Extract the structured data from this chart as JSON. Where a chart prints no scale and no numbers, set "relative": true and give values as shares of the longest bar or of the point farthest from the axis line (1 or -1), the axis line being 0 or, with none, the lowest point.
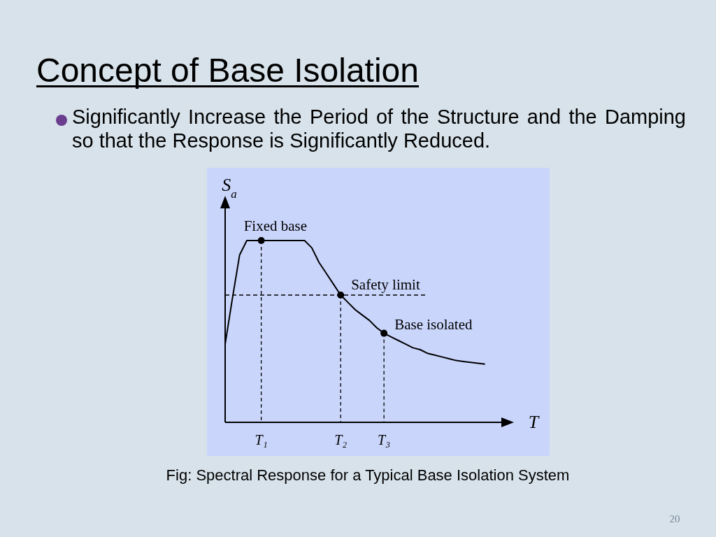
{
  "chart_data": {
    "type": "line",
    "title": "Concept of Base Isolation",
    "subtitle": "Significantly Increase the Period of the Structure and the Damping so that the Response is Significantly Reduced.",
    "xlabel": "T",
    "ylabel": "S$_{a}$",
    "relative": true,
    "categories": [
      null,
      null,
      null,
      null,
      null,
      "T₁",
      null,
      null,
      null,
      null,
      null,
      null,
      null,
      null,
      null,
      null,
      "T₂",
      null,
      null,
      null,
      null,
      null,
      "T₃",
      null,
      null,
      null,
      null,
      null,
      null,
      null,
      null,
      null,
      null,
      null,
      null,
      null,
      null,
      null,
      null,
      null,
      null
    ],
    "series": [
      {
        "color": "#000000",
        "values": [
          0.43,
          0.68,
          0.92,
          1,
          1,
          1,
          1,
          1,
          1,
          1,
          1,
          1,
          0.96,
          0.88,
          0.82,
          0.76,
          0.7,
          0.66,
          0.62,
          0.59,
          0.56,
          0.52,
          0.49,
          0.47,
          0.45,
          0.43,
          0.41,
          0.4,
          0.38,
          0.37,
          0.36,
          0.35,
          0.34,
          0.335,
          0.33,
          0.325,
          0.32,
          null,
          null,
          null,
          null
        ]
      },
      {
        "type": "scatter",
        "color": "#000000",
        "x": [
          "T₁",
          "T₂",
          "T₃"
        ],
        "values": [
          1,
          0.7,
          0.49
        ],
        "marker": "circle"
      }
    ],
    "ref_lines": [
      {
        "axis": "y",
        "value": 0.7,
        "line_style": "dashed",
        "color": "#000000"
      }
    ],
    "annotations": [
      {
        "text": "Fixed base",
        "x": "T₁",
        "y": 1
      },
      {
        "text": "Safety limit",
        "x": "T₂",
        "y": 0.7
      },
      {
        "text": "Base isolated",
        "x": "T₃",
        "y": 0.49
      },
      "Fig: Spectral Response for a Typical Base Isolation System",
      "20"
    ]
  }
}
